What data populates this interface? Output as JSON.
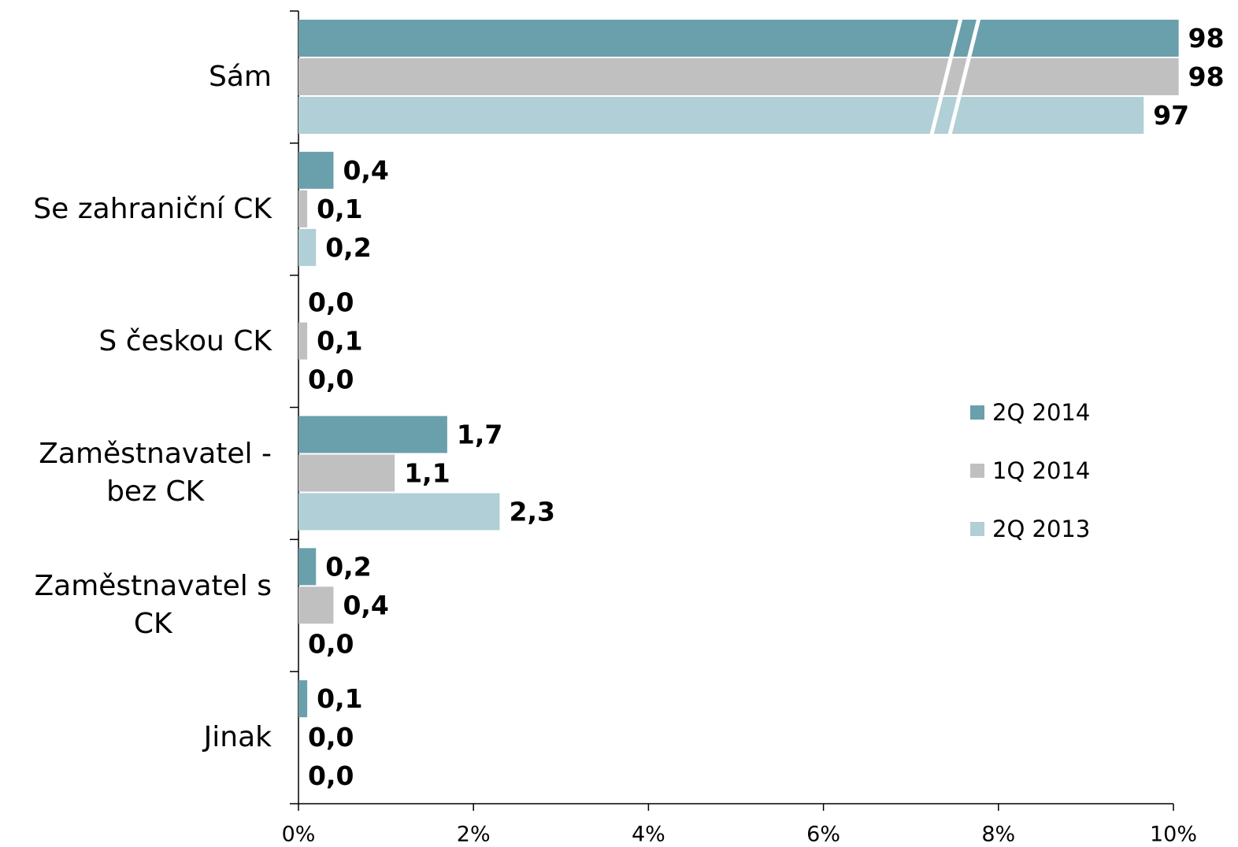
{
  "chart_data": {
    "type": "bar",
    "orientation": "horizontal",
    "categories": [
      "Sám",
      "Se zahraniční CK",
      "S českou CK",
      "Zaměstnavatel -\nbez CK",
      "Zaměstnavatel s\nCK",
      "Jinak"
    ],
    "series": [
      {
        "name": "2Q 2014",
        "color": "#6a9fac",
        "values": [
          98,
          0.4,
          0,
          1.7,
          0.2,
          0.1
        ],
        "value_labels": [
          "98",
          "0,4",
          "0,0",
          "1,7",
          "0,2",
          "0,1"
        ]
      },
      {
        "name": "1Q 2014",
        "color": "#c0c0c0",
        "values": [
          98,
          0.1,
          0.1,
          1.1,
          0.4,
          0
        ],
        "value_labels": [
          "98",
          "0,1",
          "0,1",
          "1,1",
          "0,4",
          "0,0"
        ]
      },
      {
        "name": "2Q 2013",
        "color": "#b0cfd6",
        "values": [
          97,
          0.2,
          0,
          2.3,
          0,
          0
        ],
        "value_labels": [
          "97",
          "0,2",
          "0,0",
          "2,3",
          "0,0",
          "0,0"
        ]
      }
    ],
    "xlim": [
      0,
      10
    ],
    "xticks": [
      {
        "value": 0,
        "label": "0%"
      },
      {
        "value": 2,
        "label": "2%"
      },
      {
        "value": 4,
        "label": "4%"
      },
      {
        "value": 6,
        "label": "6%"
      },
      {
        "value": 8,
        "label": "8%"
      },
      {
        "value": 10,
        "label": "10%"
      }
    ],
    "x_break": {
      "at": 7.5,
      "resume": 91.6,
      "ratio": 0.4
    },
    "legend": "right"
  }
}
